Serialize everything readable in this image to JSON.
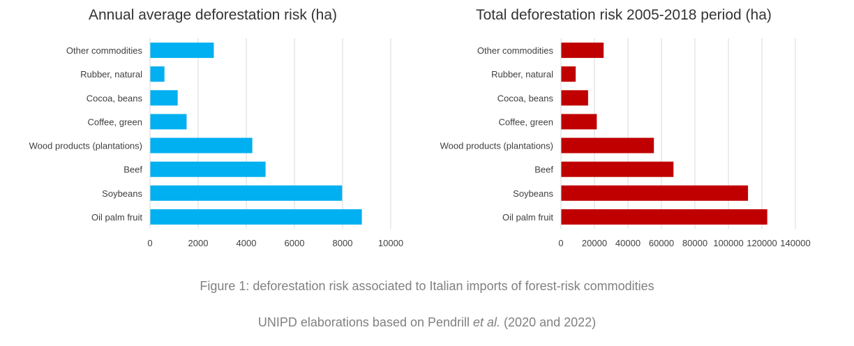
{
  "chart_data": [
    {
      "type": "bar",
      "orientation": "horizontal",
      "title": "Annual average deforestation risk (ha)",
      "categories": [
        "Other commodities",
        "Rubber, natural",
        "Cocoa, beans",
        "Coffee, green",
        "Wood products (plantations)",
        "Beef",
        "Soybeans",
        "Oil palm fruit"
      ],
      "values": [
        2650,
        600,
        1150,
        1520,
        4250,
        4800,
        7980,
        8800
      ],
      "xlim": [
        0,
        10000
      ],
      "ticks": [
        0,
        2000,
        4000,
        6000,
        8000,
        10000
      ],
      "tick_labels": [
        "0",
        "2000",
        "4000",
        "6000",
        "8000",
        "10000"
      ],
      "grid": "vertical",
      "color": "#00B0F0"
    },
    {
      "type": "bar",
      "orientation": "horizontal",
      "title": "Total deforestation risk 2005-2018 period (ha)",
      "categories": [
        "Other commodities",
        "Rubber, natural",
        "Cocoa, beans",
        "Coffee, green",
        "Wood products (plantations)",
        "Beef",
        "Soybeans",
        "Oil palm fruit"
      ],
      "values": [
        25500,
        8800,
        16200,
        21400,
        55500,
        67200,
        111700,
        123200
      ],
      "xlim": [
        0,
        140000
      ],
      "ticks": [
        0,
        20000,
        40000,
        60000,
        80000,
        100000,
        120000,
        140000
      ],
      "tick_labels": [
        "0",
        "20000",
        "40000",
        "60000",
        "80000",
        "100000",
        "120000",
        "140000"
      ],
      "grid": "vertical",
      "color": "#C00000"
    }
  ],
  "caption": {
    "line1": "Figure 1: deforestation risk associated to Italian imports of forest-risk commodities",
    "line2_prefix": "UNIPD elaborations based on Pendrill ",
    "line2_italic": "et al.",
    "line2_suffix": " (2020 and 2022)"
  }
}
